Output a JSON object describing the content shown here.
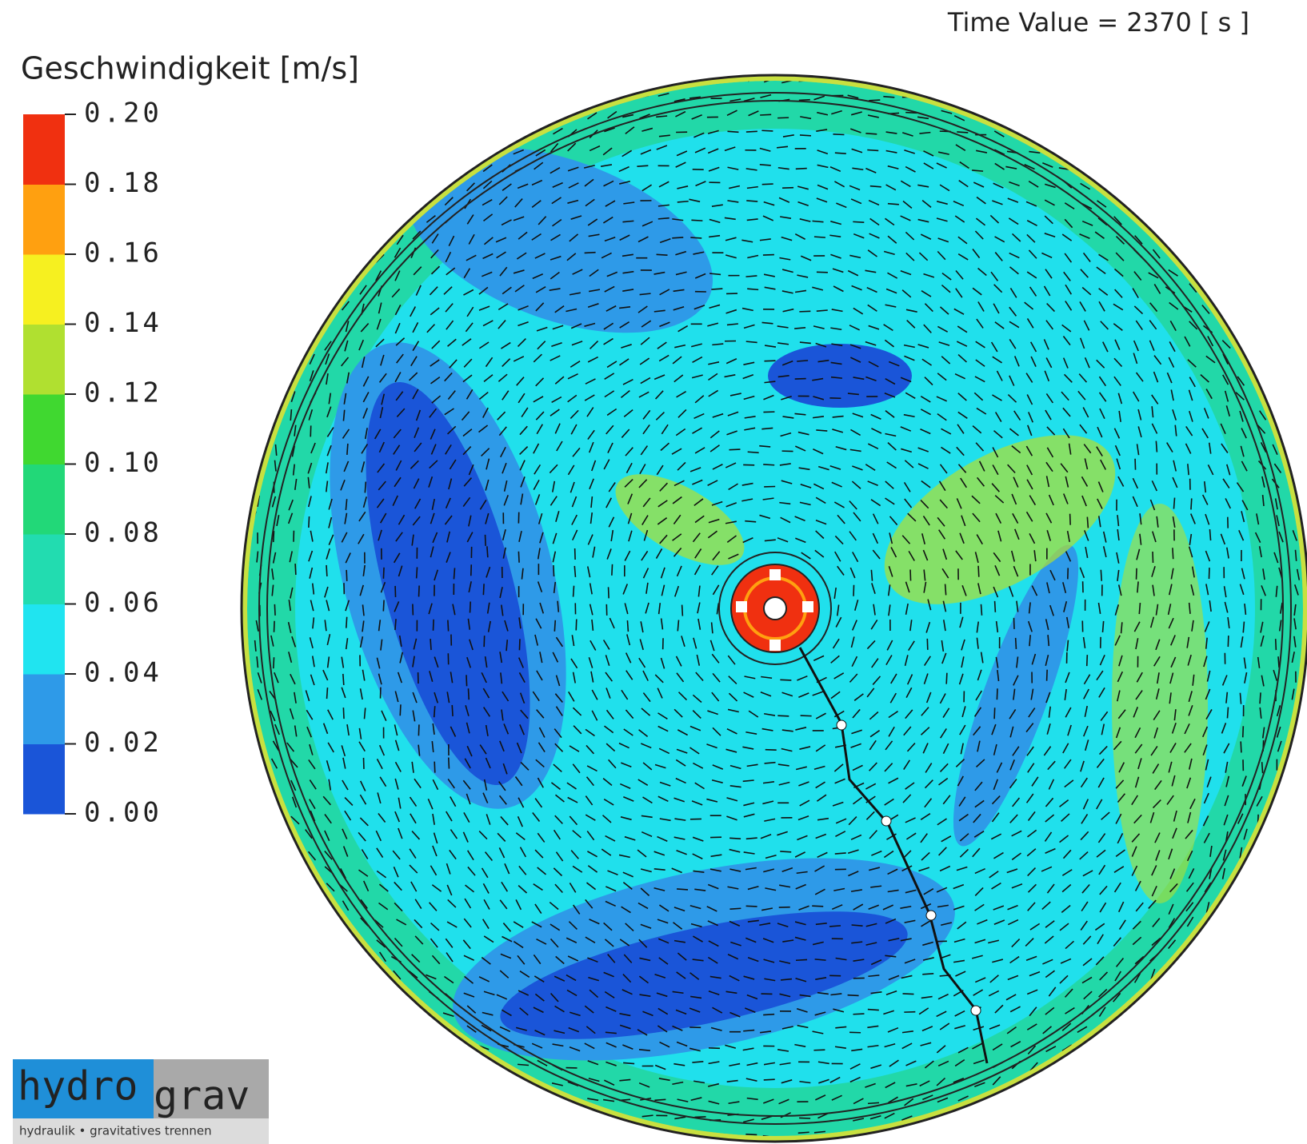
{
  "header": {
    "time_label": "Time  Value  =  2370  [  s  ]"
  },
  "colorbar": {
    "title": "Geschwindigkeit  [m/s]",
    "range": [
      0,
      0.2
    ],
    "ticks": [
      {
        "value": 0,
        "label": "0.00"
      },
      {
        "value": 0.02,
        "label": "0.02"
      },
      {
        "value": 0.04,
        "label": "0.04"
      },
      {
        "value": 0.06,
        "label": "0.06"
      },
      {
        "value": 0.08,
        "label": "0.08"
      },
      {
        "value": 0.1,
        "label": "0.10"
      },
      {
        "value": 0.12,
        "label": "0.12"
      },
      {
        "value": 0.14,
        "label": "0.14"
      },
      {
        "value": 0.16,
        "label": "0.16"
      },
      {
        "value": 0.18,
        "label": "0.18"
      },
      {
        "value": 0.2,
        "label": "0.20"
      }
    ],
    "colors": [
      "#1a55d8",
      "#2e9ae8",
      "#20e4f0",
      "#22dcb0",
      "#22d878",
      "#40d830",
      "#b0e030",
      "#f6f020",
      "#ffa010",
      "#f03010"
    ]
  },
  "logo": {
    "part1": "hydro",
    "part2": "grav",
    "tagline": "hydraulik • gravitatives trennen"
  }
}
